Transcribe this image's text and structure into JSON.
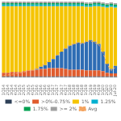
{
  "chart_data": {
    "type": "bar",
    "categories": [
      "1Q14",
      "2Q14",
      "3Q14",
      "4Q14",
      "1Q15",
      "2Q15",
      "3Q15",
      "4Q15",
      "1Q16",
      "2Q16",
      "3Q16",
      "4Q16",
      "1Q17",
      "2Q17",
      "3Q17",
      "4Q17",
      "1Q18",
      "2Q18",
      "3Q18",
      "4Q18",
      "1Q19",
      "2Q19",
      "3Q19",
      "4Q19",
      "1Q20",
      "2Q20",
      "3Q20",
      "Jul-20"
    ],
    "series": [
      {
        "name": "<=0%",
        "color": "#2e4057",
        "values": [
          1,
          1,
          1,
          1,
          1,
          1,
          1,
          1,
          1,
          1,
          1,
          1,
          1,
          1,
          1,
          1,
          1,
          1,
          1,
          1,
          1,
          1,
          1,
          1,
          1,
          1,
          1,
          1
        ]
      },
      {
        "name": ">0%-0.75%",
        "color": "#e05c2e",
        "values": [
          5,
          5,
          6,
          6,
          6,
          7,
          8,
          8,
          9,
          10,
          10,
          11,
          11,
          11,
          11,
          10,
          9,
          9,
          9,
          9,
          8,
          8,
          8,
          8,
          7,
          5,
          4,
          4
        ]
      },
      {
        "color": "#2e6db4",
        "values": [
          0,
          0,
          0,
          0,
          0,
          0,
          0,
          0,
          1,
          3,
          5,
          8,
          12,
          17,
          22,
          27,
          32,
          34,
          36,
          35,
          38,
          40,
          38,
          35,
          26,
          12,
          6,
          10
        ]
      },
      {
        "name": "1%",
        "color": "#f5c400",
        "values": [
          88,
          88,
          87,
          87,
          87,
          86,
          85,
          85,
          83,
          80,
          78,
          74,
          70,
          65,
          60,
          56,
          52,
          50,
          48,
          49,
          46,
          44,
          47,
          50,
          59,
          74,
          82,
          77
        ]
      },
      {
        "name": "1.25%",
        "color": "#00b0d0",
        "values": [
          2,
          2,
          2,
          2,
          2,
          2,
          2,
          2,
          2,
          2,
          2,
          2,
          2,
          2,
          2,
          2,
          2,
          2,
          2,
          2,
          2,
          2,
          2,
          2,
          2,
          2,
          2,
          2
        ]
      },
      {
        "name": "1.75%",
        "color": "#00a050",
        "values": [
          2,
          2,
          2,
          2,
          2,
          2,
          2,
          2,
          2,
          2,
          2,
          2,
          2,
          2,
          2,
          2,
          2,
          2,
          2,
          2,
          2,
          2,
          2,
          2,
          2,
          2,
          2,
          2
        ]
      },
      {
        "name": ">= 2%",
        "color": "#a0a0a0",
        "values": [
          2,
          2,
          2,
          2,
          2,
          2,
          2,
          2,
          2,
          2,
          2,
          2,
          2,
          2,
          2,
          2,
          2,
          2,
          2,
          2,
          2,
          2,
          2,
          2,
          2,
          2,
          2,
          2
        ]
      },
      {
        "name": "Avg",
        "type": "line",
        "color": "#f4a460",
        "line_style": "dashed",
        "marker": "none",
        "values": [
          2,
          3,
          4,
          5,
          6,
          7,
          9,
          10,
          12,
          15,
          18,
          22,
          26,
          30,
          35,
          38,
          42,
          44,
          46,
          44,
          47,
          48,
          46,
          43,
          33,
          17,
          9,
          13
        ]
      }
    ],
    "ylim": [
      0,
      100
    ],
    "stacked": true,
    "legend": "bottom",
    "grid": false,
    "tick_labels": "x"
  }
}
